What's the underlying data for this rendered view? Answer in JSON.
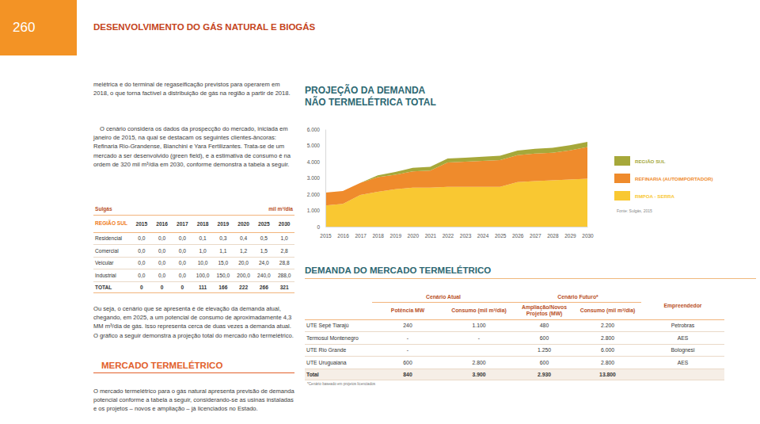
{
  "header": {
    "page_number": "260",
    "title": "DESENVOLVIMENTO DO GÁS NATURAL E BIOGÁS"
  },
  "left": {
    "paragraphs": [
      "melétrica e do terminal de regaseificação previstos para operarem em 2018, o que torna factível a distribuição de gás na região a partir de 2018.",
      "O cenário considera os dados da prospecção do mercado, iniciada em janeiro de 2015, na qual se destacam os seguintes clientes-âncoras: Refinaria Rio-Grandense, Bianchini e Yara Fertilizantes. Trata-se de um mercado a ser desenvolvido (green field), e a estimativa de consumo é na ordem de 320 mil m³/dia em 2030, conforme demonstra a tabela a seguir."
    ],
    "table": {
      "title": "Sulgás",
      "unit": "mil m³/dia",
      "region": "REGIÃO SUL",
      "columns": [
        "2015",
        "2016",
        "2017",
        "2018",
        "2019",
        "2020",
        "2025",
        "2030"
      ],
      "rows": [
        {
          "label": "Residencial",
          "values": [
            "0,0",
            "0,0",
            "0,0",
            "0,1",
            "0,3",
            "0,4",
            "0,5",
            "1,0"
          ]
        },
        {
          "label": "Comercial",
          "values": [
            "0,0",
            "0,0",
            "0,0",
            "1,0",
            "1,1",
            "1,2",
            "1,5",
            "2,8"
          ]
        },
        {
          "label": "Veicular",
          "values": [
            "0,0",
            "0,0",
            "0,0",
            "10,0",
            "15,0",
            "20,0",
            "24,0",
            "28,8"
          ]
        },
        {
          "label": "Industrial",
          "values": [
            "0,0",
            "0,0",
            "0,0",
            "100,0",
            "150,0",
            "200,0",
            "240,0",
            "288,0"
          ]
        },
        {
          "label": "TOTAL",
          "values": [
            "0",
            "0",
            "0",
            "111",
            "166",
            "222",
            "266",
            "321"
          ]
        }
      ]
    },
    "after_table": "Ou seja, o cenário que se apresenta é de elevação da demanda atual, chegando, em 2025, a um potencial de consumo de aproximadamente 4,3 MM m³/dia de gás. Isso representa cerca de duas vezes a demanda atual. O gráfico a seguir demonstra a projeção total do mercado não termelétrico.",
    "heading": "MERCADO TERMELÉTRICO",
    "closing": "O mercado termelétrico para o gás natural apresenta previsão de demanda potencial conforme a tabela a seguir, considerando-se as usinas instaladas e os projetos – novos e ampliação – já licenciados no Estado."
  },
  "chart_data": {
    "type": "area",
    "stacked": true,
    "legend": "right",
    "title": [
      "PROJEÇÃO DA DEMANDA",
      "NÃO TERMELÉTRICA TOTAL"
    ],
    "source": "Fonte: Sulgás, 2015",
    "x": [
      2015,
      2016,
      2017,
      2018,
      2019,
      2020,
      2021,
      2022,
      2023,
      2024,
      2025,
      2026,
      2027,
      2028,
      2029,
      2030
    ],
    "xlim": [
      2015,
      2030
    ],
    "xticks": [
      2015,
      2016,
      2017,
      2018,
      2019,
      2020,
      2021,
      2022,
      2023,
      2024,
      2025,
      2026,
      2027,
      2028,
      2029,
      2030
    ],
    "ylim": [
      0,
      6000
    ],
    "yticks": [
      0,
      {
        "value": 1000,
        "label": "1.000"
      },
      {
        "value": 2000,
        "label": "2.000"
      },
      {
        "value": 3000,
        "label": "3.000"
      },
      {
        "value": 4000,
        "label": "4.000"
      },
      {
        "value": 5000,
        "label": "5.000"
      },
      {
        "value": 6000,
        "label": "6.000"
      }
    ],
    "series": [
      {
        "name": "RMPOA - SERRA",
        "color": "#f9c832",
        "values": [
          1300,
          1400,
          1950,
          2150,
          2300,
          2400,
          2400,
          2450,
          2450,
          2450,
          2450,
          2750,
          2800,
          2850,
          2900,
          2950
        ]
      },
      {
        "name": "REFINARIA (AUTOIMPORTADOR)",
        "color": "#ef8b2c",
        "values": [
          800,
          800,
          750,
          900,
          900,
          1000,
          1050,
          1500,
          1550,
          1600,
          1650,
          1650,
          1700,
          1700,
          1800,
          1950
        ]
      },
      {
        "name": "REGIÃO SUL",
        "color": "#a6a83a",
        "values": [
          0,
          0,
          0,
          110,
          170,
          220,
          230,
          240,
          250,
          260,
          270,
          280,
          290,
          300,
          310,
          320
        ]
      }
    ]
  },
  "thermo": {
    "heading": "DEMANDA DO MERCADO TERMELÉTRICO",
    "table": {
      "current": "Cenário Atual",
      "future": "Cenário Futuro*",
      "owner": "Empreendedor",
      "columns": [
        "Potência MW",
        "Consumo (mil m³/dia)",
        "Ampliação/Novos Projetos (MW)",
        "Consumo (mil m³/dia)"
      ],
      "rows": [
        {
          "label": "UTE Sepé Tiarajú",
          "cells": [
            "240",
            "1.100",
            "480",
            "2.200"
          ],
          "owner": "Petrobras"
        },
        {
          "label": "Termosul Montenegro",
          "cells": [
            "-",
            "-",
            "600",
            "2.800"
          ],
          "owner": "AES"
        },
        {
          "label": "UTE Rio Grande",
          "cells": [
            "-",
            null,
            "1.250",
            "6.000"
          ],
          "owner": "Bolognesi"
        },
        {
          "label": "UTE Uruguaiana",
          "cells": [
            "600",
            "2.800",
            "600",
            "2.800"
          ],
          "owner": "AES"
        },
        {
          "label": "Total",
          "cells": [
            "840",
            "3.900",
            "2.930",
            "13.800"
          ]
        }
      ]
    },
    "footnote": "*Cenário baseado em projetos licenciados"
  }
}
